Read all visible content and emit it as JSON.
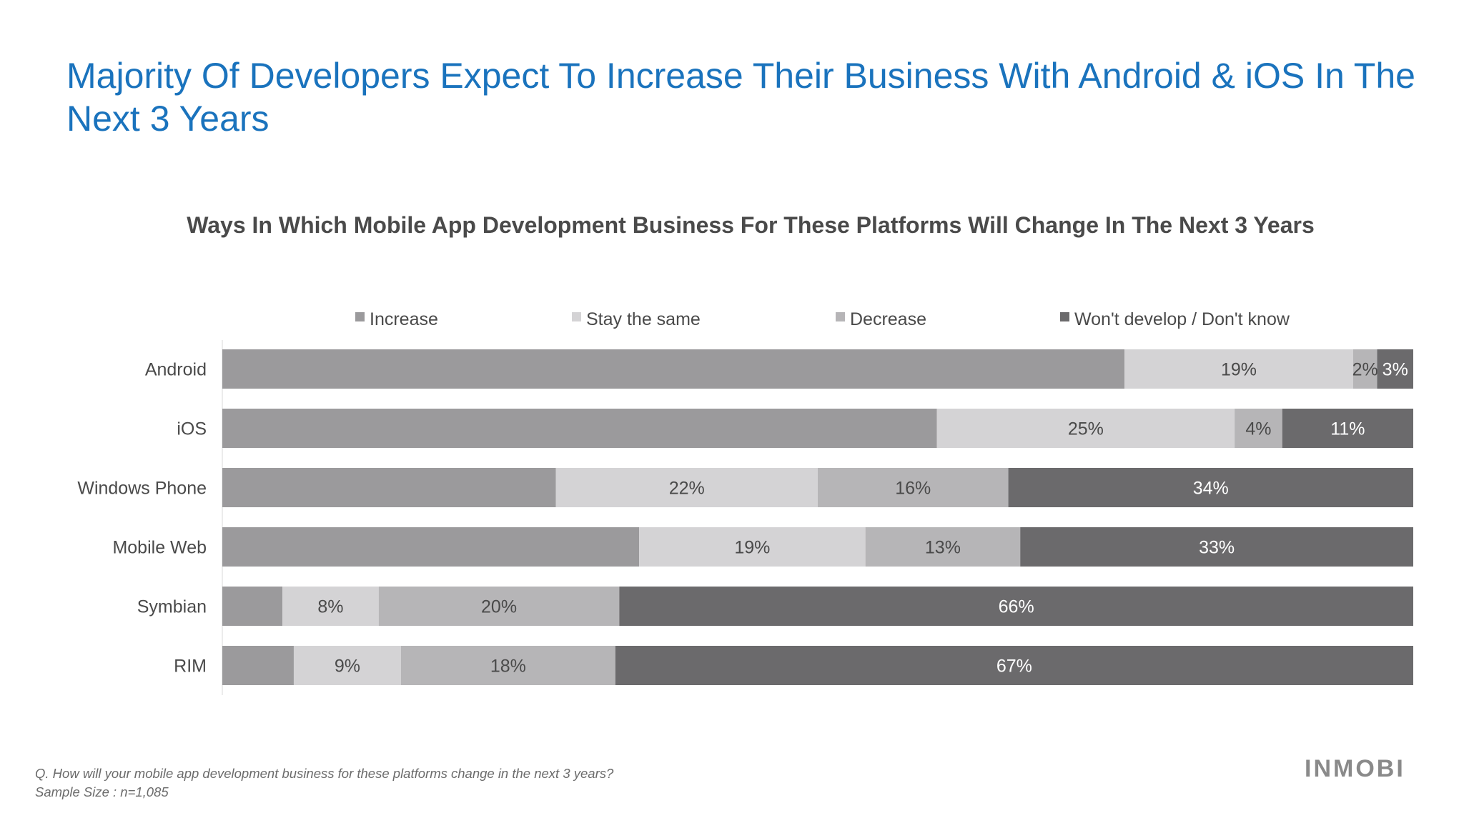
{
  "slide_title": "Majority Of Developers Expect To Increase Their Business With Android & iOS In The Next 3 Years",
  "footnote": {
    "question": "Q. How will your mobile app development business for these platforms change in the next 3 years?",
    "sample": "Sample Size : n=1,085"
  },
  "logo_text": "INMOBI",
  "chart_data": {
    "type": "bar",
    "orientation": "horizontal",
    "stacked": true,
    "title": "Ways In Which Mobile App Development Business For These Platforms Will Change In The Next 3 Years",
    "categories": [
      "Android",
      "iOS",
      "Windows Phone",
      "Mobile Web",
      "Symbian",
      "RIM"
    ],
    "legend_position": "top",
    "grid": false,
    "xlim": [
      0,
      100
    ],
    "series": [
      {
        "name": "Increase",
        "color": "#9b9a9c",
        "values": [
          75,
          60,
          28,
          35,
          5,
          6
        ],
        "labels": [
          "",
          "",
          "",
          "",
          "",
          ""
        ]
      },
      {
        "name": "Stay the same",
        "color": "#d4d3d5",
        "values": [
          19,
          25,
          22,
          19,
          8,
          9
        ],
        "labels": [
          "19%",
          "25%",
          "22%",
          "19%",
          "8%",
          "9%"
        ]
      },
      {
        "name": "Decrease",
        "color": "#b6b5b7",
        "values": [
          2,
          4,
          16,
          13,
          20,
          18
        ],
        "labels": [
          "2%",
          "4%",
          "16%",
          "13%",
          "20%",
          "18%"
        ]
      },
      {
        "name": "Won't develop / Don't know",
        "color": "#6b6a6c",
        "values": [
          3,
          11,
          34,
          33,
          66,
          67
        ],
        "labels": [
          "3%",
          "11%",
          "34%",
          "33%",
          "66%",
          "67%"
        ]
      }
    ]
  }
}
